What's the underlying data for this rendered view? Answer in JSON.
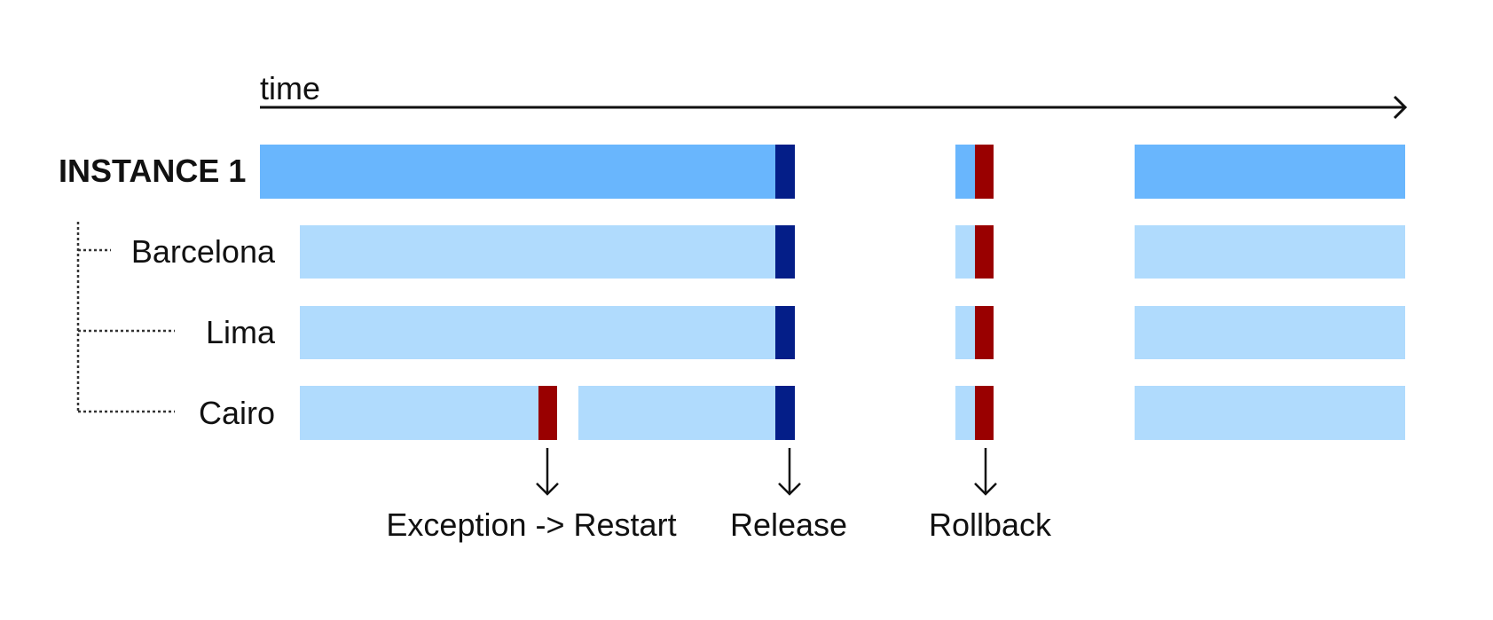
{
  "time_axis": {
    "label": "time"
  },
  "instance": {
    "label": "INSTANCE 1"
  },
  "regions": [
    {
      "label": "Barcelona"
    },
    {
      "label": "Lima"
    },
    {
      "label": "Cairo"
    }
  ],
  "events": [
    {
      "id": "exception",
      "label": "Exception -> Restart"
    },
    {
      "id": "release",
      "label": "Release"
    },
    {
      "id": "rollback",
      "label": "Rollback"
    }
  ],
  "colors": {
    "instance_running": "#69B6FD",
    "region_running": "#B0DBFD",
    "release": "#041E88",
    "failure": "#990000",
    "axis": "#111111",
    "tree_line": "#333333"
  }
}
